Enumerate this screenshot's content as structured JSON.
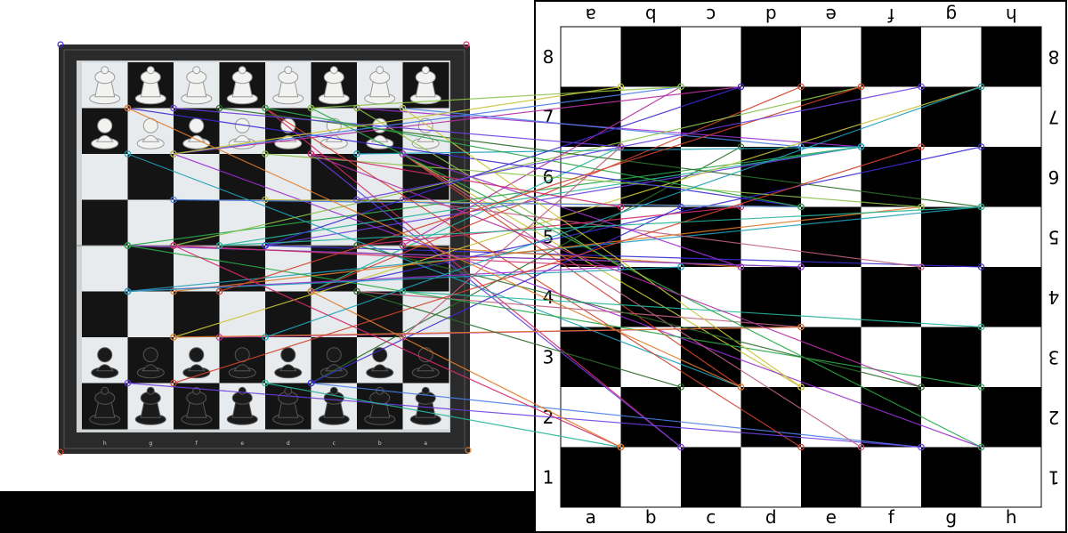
{
  "diagram_board": {
    "files_bottom": [
      "a",
      "b",
      "c",
      "d",
      "e",
      "f",
      "g",
      "h"
    ],
    "files_top": [
      "a",
      "b",
      "c",
      "d",
      "e",
      "f",
      "g",
      "h"
    ],
    "ranks_left": [
      "8",
      "7",
      "6",
      "5",
      "4",
      "3",
      "2",
      "1"
    ],
    "ranks_right": [
      "8",
      "7",
      "6",
      "5",
      "4",
      "3",
      "2",
      "1"
    ]
  },
  "photo_board": {
    "rim_file_letters": [
      "h",
      "g",
      "f",
      "e",
      "d",
      "c",
      "b",
      "a"
    ]
  },
  "colors": {
    "board_frame": "#2a2a2a",
    "light_square": "#e8ebed",
    "dark_square": "#141414",
    "white_piece": "#f2f2f0",
    "black_piece": "#1a1a1a",
    "diagram_dark": "#000000",
    "diagram_light": "#ffffff",
    "match_line_palette": [
      "#3a2bd1",
      "#9b2fd0",
      "#2aa84a",
      "#d02a6b",
      "#1f9fb8",
      "#c8c43a",
      "#d0422a",
      "#6a3fe0",
      "#27b59a",
      "#e07b2a",
      "#b52fa3",
      "#4a7fe6",
      "#8bc34a",
      "#2b6e2b",
      "#c06080"
    ]
  }
}
